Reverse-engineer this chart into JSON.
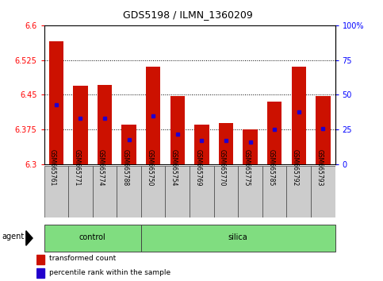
{
  "title": "GDS5198 / ILMN_1360209",
  "samples": [
    "GSM665761",
    "GSM665771",
    "GSM665774",
    "GSM665788",
    "GSM665750",
    "GSM665754",
    "GSM665769",
    "GSM665770",
    "GSM665775",
    "GSM665785",
    "GSM665792",
    "GSM665793"
  ],
  "transformed_counts": [
    6.565,
    6.47,
    6.472,
    6.385,
    6.51,
    6.447,
    6.385,
    6.39,
    6.375,
    6.435,
    6.51,
    6.447
  ],
  "percentile_ranks": [
    43,
    33,
    33,
    18,
    35,
    22,
    17,
    17,
    16,
    25,
    38,
    26
  ],
  "ylim_left": [
    6.3,
    6.6
  ],
  "yticks_left": [
    6.3,
    6.375,
    6.45,
    6.525,
    6.6
  ],
  "yticks_right": [
    0,
    25,
    50,
    75,
    100
  ],
  "bar_color": "#cc1100",
  "marker_color": "#2200cc",
  "control_samples": 4,
  "control_label": "control",
  "silica_label": "silica",
  "agent_label": "agent",
  "legend1": "transformed count",
  "legend2": "percentile rank within the sample",
  "bar_width": 0.6,
  "ybase": 6.3,
  "grid_color": "#000000",
  "grid_linestyle": "dotted",
  "bg_color": "#ffffff",
  "tick_bg": "#d0d0d0",
  "green_bg": "#80dd80"
}
